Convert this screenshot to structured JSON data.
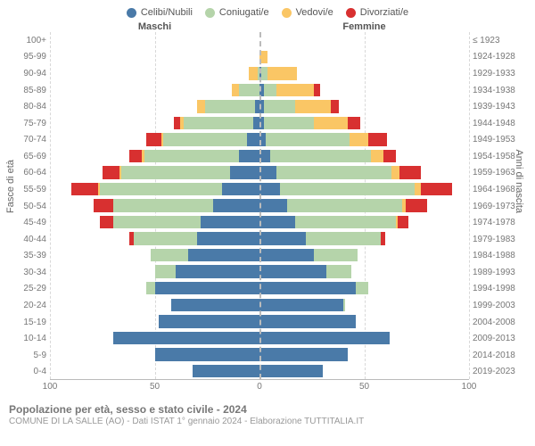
{
  "legend": [
    {
      "label": "Celibi/Nubili",
      "color": "#4a7aa8"
    },
    {
      "label": "Coniugati/e",
      "color": "#b5d4aa"
    },
    {
      "label": "Vedovi/e",
      "color": "#fac665"
    },
    {
      "label": "Divorziati/e",
      "color": "#d83030"
    }
  ],
  "headers": {
    "left": "Maschi",
    "right": "Femmine"
  },
  "axis_labels": {
    "left": "Fasce di età",
    "right": "Anni di nascita"
  },
  "x_max": 100,
  "x_ticks_left": [
    100,
    50,
    0
  ],
  "x_ticks_right": [
    0,
    50,
    100
  ],
  "title": "Popolazione per età, sesso e stato civile - 2024",
  "subtitle": "COMUNE DI LA SALLE (AO) - Dati ISTAT 1° gennaio 2024 - Elaborazione TUTTITALIA.IT",
  "rows": [
    {
      "age": "100+",
      "birth": "≤ 1923",
      "male": [
        0,
        0,
        0,
        0
      ],
      "female": [
        0,
        0,
        0,
        0
      ]
    },
    {
      "age": "95-99",
      "birth": "1924-1928",
      "male": [
        0,
        0,
        0,
        0
      ],
      "female": [
        0,
        0,
        4,
        0
      ]
    },
    {
      "age": "90-94",
      "birth": "1929-1933",
      "male": [
        0,
        1,
        4,
        0
      ],
      "female": [
        1,
        3,
        14,
        0
      ]
    },
    {
      "age": "85-89",
      "birth": "1934-1938",
      "male": [
        0,
        10,
        3,
        0
      ],
      "female": [
        2,
        6,
        18,
        3
      ]
    },
    {
      "age": "80-84",
      "birth": "1939-1943",
      "male": [
        2,
        24,
        4,
        0
      ],
      "female": [
        2,
        15,
        17,
        4
      ]
    },
    {
      "age": "75-79",
      "birth": "1944-1948",
      "male": [
        3,
        33,
        2,
        3
      ],
      "female": [
        2,
        24,
        16,
        6
      ]
    },
    {
      "age": "70-74",
      "birth": "1949-1953",
      "male": [
        6,
        40,
        1,
        7
      ],
      "female": [
        3,
        40,
        9,
        9
      ]
    },
    {
      "age": "65-69",
      "birth": "1954-1958",
      "male": [
        10,
        45,
        1,
        6
      ],
      "female": [
        5,
        48,
        6,
        6
      ]
    },
    {
      "age": "60-64",
      "birth": "1959-1963",
      "male": [
        14,
        52,
        1,
        8
      ],
      "female": [
        8,
        55,
        4,
        10
      ]
    },
    {
      "age": "55-59",
      "birth": "1964-1968",
      "male": [
        18,
        58,
        1,
        13
      ],
      "female": [
        10,
        64,
        3,
        15
      ]
    },
    {
      "age": "50-54",
      "birth": "1969-1973",
      "male": [
        22,
        48,
        0,
        9
      ],
      "female": [
        13,
        55,
        2,
        10
      ]
    },
    {
      "age": "45-49",
      "birth": "1974-1978",
      "male": [
        28,
        42,
        0,
        6
      ],
      "female": [
        17,
        48,
        1,
        5
      ]
    },
    {
      "age": "40-44",
      "birth": "1979-1983",
      "male": [
        30,
        30,
        0,
        2
      ],
      "female": [
        22,
        36,
        0,
        2
      ]
    },
    {
      "age": "35-39",
      "birth": "1984-1988",
      "male": [
        34,
        18,
        0,
        0
      ],
      "female": [
        26,
        21,
        0,
        0
      ]
    },
    {
      "age": "30-34",
      "birth": "1989-1993",
      "male": [
        40,
        10,
        0,
        0
      ],
      "female": [
        32,
        12,
        0,
        0
      ]
    },
    {
      "age": "25-29",
      "birth": "1994-1998",
      "male": [
        50,
        4,
        0,
        0
      ],
      "female": [
        46,
        6,
        0,
        0
      ]
    },
    {
      "age": "20-24",
      "birth": "1999-2003",
      "male": [
        42,
        0,
        0,
        0
      ],
      "female": [
        40,
        1,
        0,
        0
      ]
    },
    {
      "age": "15-19",
      "birth": "2004-2008",
      "male": [
        48,
        0,
        0,
        0
      ],
      "female": [
        46,
        0,
        0,
        0
      ]
    },
    {
      "age": "10-14",
      "birth": "2009-2013",
      "male": [
        70,
        0,
        0,
        0
      ],
      "female": [
        62,
        0,
        0,
        0
      ]
    },
    {
      "age": "5-9",
      "birth": "2014-2018",
      "male": [
        50,
        0,
        0,
        0
      ],
      "female": [
        42,
        0,
        0,
        0
      ]
    },
    {
      "age": "0-4",
      "birth": "2019-2023",
      "male": [
        32,
        0,
        0,
        0
      ],
      "female": [
        30,
        0,
        0,
        0
      ]
    }
  ]
}
